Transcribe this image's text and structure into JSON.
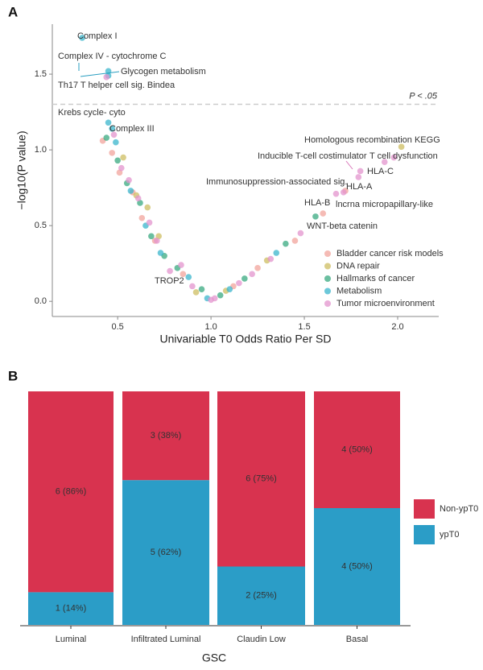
{
  "chart_data": [
    {
      "type": "scatter",
      "panel": "A",
      "x_label": "Univariable T0 Odds Ratio Per SD",
      "y_label": "−log10(P value)",
      "xlim": [
        0.15,
        2.22
      ],
      "ylim": [
        -0.1,
        1.83
      ],
      "xticks": [
        0.5,
        {
          "value": 1,
          "label": "1.0"
        },
        1.5,
        {
          "value": 2,
          "label": "2.0"
        }
      ],
      "yticks": [
        {
          "value": 0,
          "label": "0.0"
        },
        0.5,
        {
          "value": 1,
          "label": "1.0"
        },
        1.5
      ],
      "threshold": 1.301,
      "threshold_label": "P < .05",
      "legend": "bottom-right",
      "series": [
        {
          "name": "Bladder cancer risk models",
          "color": "#f2a49c",
          "x": [
            0.42,
            0.47,
            0.51,
            0.58,
            0.63,
            0.7,
            0.85,
            1.12,
            1.25,
            1.45,
            1.6,
            1.72
          ],
          "values": [
            1.06,
            0.98,
            0.85,
            0.72,
            0.55,
            0.4,
            0.18,
            0.1,
            0.22,
            0.4,
            0.58,
            0.73
          ]
        },
        {
          "name": "DNA repair",
          "color": "#cdbd62",
          "x": [
            0.53,
            0.6,
            0.66,
            0.72,
            0.92,
            1.08,
            1.3,
            2.02
          ],
          "values": [
            0.95,
            0.7,
            0.62,
            0.43,
            0.06,
            0.07,
            0.27,
            1.02
          ]
        },
        {
          "name": "Hallmarks of cancer",
          "color": "#3aaa80",
          "x": [
            0.44,
            0.5,
            0.55,
            0.62,
            0.68,
            0.75,
            0.82,
            0.95,
            1.05,
            1.18,
            1.4,
            1.56
          ],
          "values": [
            1.08,
            0.93,
            0.78,
            0.65,
            0.43,
            0.3,
            0.22,
            0.08,
            0.04,
            0.15,
            0.38,
            0.56
          ]
        },
        {
          "name": "Metabolism",
          "color": "#3bb6cc",
          "x": [
            0.31,
            0.45,
            0.45,
            0.45,
            0.47,
            0.49,
            0.57,
            0.65,
            0.73,
            0.88,
            0.98,
            1.1,
            1.35
          ],
          "values": [
            1.74,
            1.52,
            1.49,
            1.18,
            1.14,
            1.05,
            0.73,
            0.5,
            0.32,
            0.16,
            0.02,
            0.08,
            0.32
          ]
        },
        {
          "name": "Tumor microenvironment",
          "color": "#e394cd",
          "x": [
            0.44,
            0.48,
            0.52,
            0.56,
            0.61,
            0.67,
            0.71,
            0.78,
            0.84,
            0.9,
            1.0,
            1.02,
            1.15,
            1.22,
            1.32,
            1.48,
            1.67,
            1.71,
            1.79,
            1.8,
            1.93,
            1.98
          ],
          "values": [
            1.48,
            1.1,
            0.88,
            0.8,
            0.68,
            0.52,
            0.4,
            0.2,
            0.24,
            0.1,
            0.01,
            0.02,
            0.12,
            0.18,
            0.28,
            0.45,
            0.71,
            0.72,
            0.82,
            0.86,
            0.92,
            0.95
          ]
        }
      ],
      "annotations": [
        {
          "text": "Complex I",
          "color": "#2a9fc0"
        },
        {
          "text": "Complex IV - cytochrome C",
          "color": "#2a9fc0"
        },
        {
          "text": "Glycogen metabolism",
          "color": "#2a9fc0"
        },
        {
          "text": "Th17 T helper cell sig. Bindea",
          "color": "#d976b8"
        },
        {
          "text": "Krebs cycle- cyto",
          "color": "#2a9fc0"
        },
        {
          "text": "Complex III",
          "color": "#2a9fc0"
        },
        {
          "text": "Homologous recombination KEGG",
          "color": "#b59a1a"
        },
        {
          "text": "Inducible T-cell costimulator",
          "color": "#d976b8"
        },
        {
          "text": "T cell dysfunction",
          "color": "#d976b8"
        },
        {
          "text": "HLA-C",
          "color": "#d976b8"
        },
        {
          "text": "HLA-A",
          "color": "#d976b8"
        },
        {
          "text": "Immunosuppression-associated sig.",
          "color": "#d976b8"
        },
        {
          "text": "HLA-B",
          "color": "#d976b8"
        },
        {
          "text": "lncrna micropapillary-like",
          "color": "#ec7f72"
        },
        {
          "text": "WNT-beta catenin",
          "color": "#22955f"
        },
        {
          "text": "TROP2",
          "color": "#d976b8"
        }
      ]
    },
    {
      "type": "bar",
      "panel": "B",
      "stacked": true,
      "x_label": "GSC",
      "categories": [
        "Luminal",
        "Infiltrated Luminal",
        "Claudin Low",
        "Basal"
      ],
      "ylim": [
        0,
        100
      ],
      "legend": "right",
      "series": [
        {
          "name": "ypT0",
          "color": "#2b9dc7",
          "values": [
            14,
            62,
            25,
            50
          ],
          "value_labels": [
            "1 (14%)",
            "5 (62%)",
            "2 (25%)",
            "4 (50%)"
          ]
        },
        {
          "name": "Non-ypT0",
          "color": "#d8334f",
          "values": [
            86,
            38,
            75,
            50
          ],
          "value_labels": [
            "6 (86%)",
            "3 (38%)",
            "6 (75%)",
            "4 (50%)"
          ]
        }
      ]
    }
  ]
}
